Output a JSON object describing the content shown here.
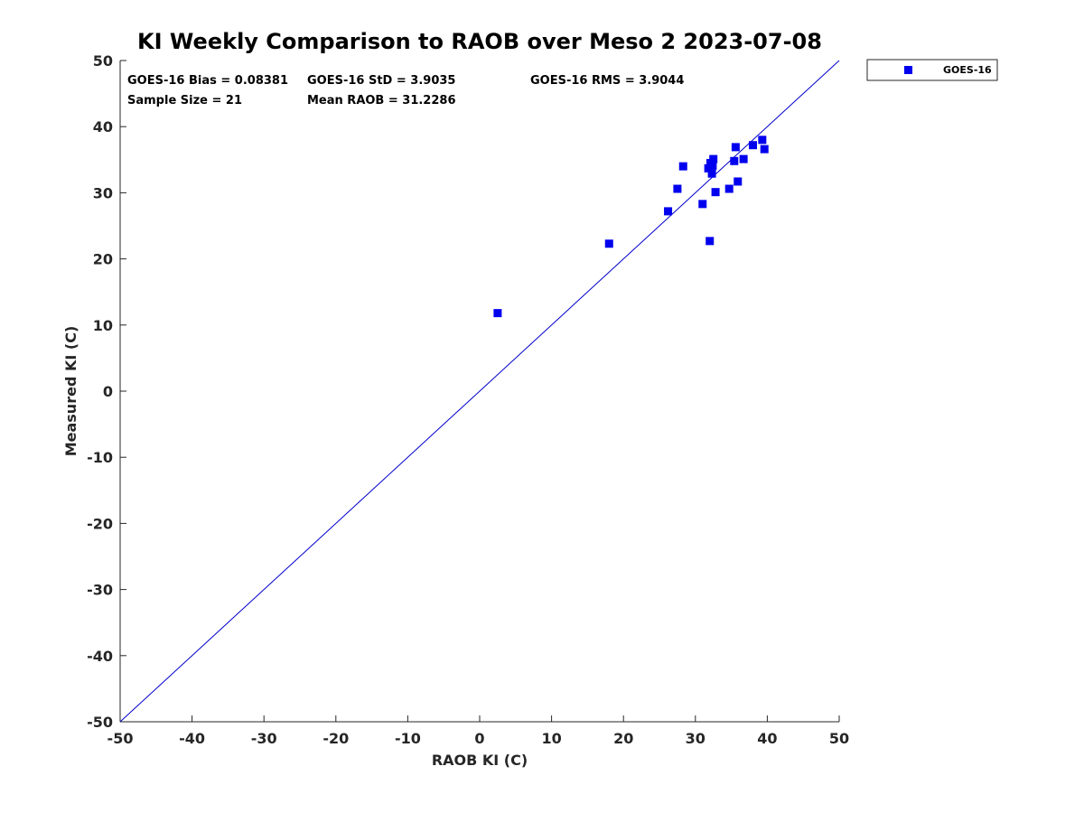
{
  "chart_data": {
    "type": "scatter",
    "title": "KI Weekly Comparison to RAOB over Meso 2 2023-07-08",
    "xlabel": "RAOB KI (C)",
    "ylabel": "Measured KI (C)",
    "xlim": [
      -50,
      50
    ],
    "ylim": [
      -50,
      50
    ],
    "xticks": [
      -50,
      -40,
      -30,
      -20,
      -10,
      0,
      10,
      20,
      30,
      40,
      50
    ],
    "yticks": [
      -50,
      -40,
      -30,
      -20,
      -10,
      0,
      10,
      20,
      30,
      40,
      50
    ],
    "xtick_labels": [
      "-50",
      "-40",
      "-30",
      "-20",
      "-10",
      "0",
      "10",
      "20",
      "30",
      "40",
      "50"
    ],
    "ytick_labels": [
      "-50",
      "-40",
      "-30",
      "-20",
      "-10",
      "0",
      "10",
      "20",
      "30",
      "40",
      "50"
    ],
    "grid": false,
    "legend_position": "outside-top-right",
    "reference_line": {
      "type": "identity",
      "from": [
        -50,
        -50
      ],
      "to": [
        50,
        50
      ],
      "color": "#0000cc"
    },
    "stats": {
      "bias": "GOES-16 Bias = 0.08381",
      "std": "GOES-16 StD = 3.9035",
      "rms": "GOES-16 RMS = 3.9044",
      "sample": "Sample Size = 21",
      "mean": "Mean RAOB = 31.2286"
    },
    "series": [
      {
        "name": "GOES-16",
        "color": "#0000ee",
        "marker": "square",
        "points": [
          [
            2.5,
            11.8
          ],
          [
            18.0,
            22.3
          ],
          [
            26.2,
            27.2
          ],
          [
            27.5,
            30.6
          ],
          [
            28.3,
            34.0
          ],
          [
            31.0,
            28.3
          ],
          [
            31.8,
            33.7
          ],
          [
            32.0,
            22.7
          ],
          [
            32.1,
            34.5
          ],
          [
            32.3,
            32.9
          ],
          [
            32.4,
            34.1
          ],
          [
            32.5,
            35.1
          ],
          [
            32.8,
            30.1
          ],
          [
            34.7,
            30.6
          ],
          [
            35.4,
            34.8
          ],
          [
            35.6,
            36.9
          ],
          [
            35.9,
            31.7
          ],
          [
            36.7,
            35.1
          ],
          [
            38.0,
            37.2
          ],
          [
            39.3,
            38.0
          ],
          [
            39.6,
            36.6
          ]
        ]
      }
    ]
  }
}
